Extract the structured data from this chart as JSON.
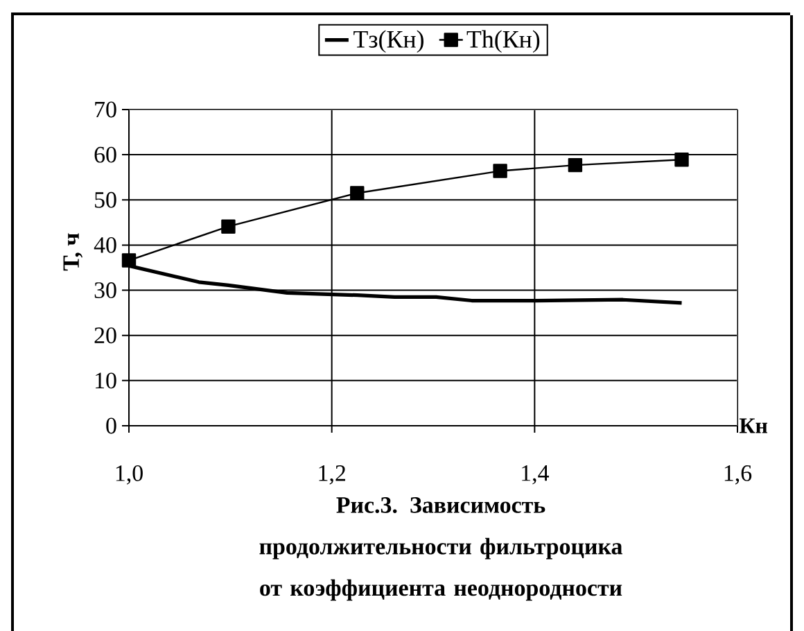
{
  "chart_data": {
    "type": "line",
    "title": "Рис.3. Зависимость продолжительности фильтроцика от коэффициента неоднородности",
    "xlabel": "Кн",
    "ylabel": "Т, ч",
    "series": [
      {
        "name": "Тз(Кн)",
        "color": "#000000",
        "marker": "none",
        "x": [
          1.0,
          1.069,
          1.098,
          1.156,
          1.225,
          1.262,
          1.303,
          1.338,
          1.402,
          1.487,
          1.545
        ],
        "values": [
          35.4,
          31.8,
          31.1,
          29.4,
          28.9,
          28.5,
          28.5,
          27.7,
          27.7,
          27.9,
          27.2
        ]
      },
      {
        "name": "Th(Кн)",
        "color": "#000000",
        "marker": "square",
        "x": [
          1.0,
          1.098,
          1.225,
          1.366,
          1.44,
          1.545
        ],
        "values": [
          36.6,
          44.1,
          51.5,
          56.4,
          57.7,
          58.9
        ]
      }
    ],
    "xlim": [
      1.0,
      1.6
    ],
    "xticks": [
      {
        "value": 1.0,
        "label": "1,0"
      },
      {
        "value": 1.2,
        "label": "1,2"
      },
      {
        "value": 1.4,
        "label": "1,4"
      },
      {
        "value": 1.6,
        "label": "1,6"
      }
    ],
    "ylim": [
      0,
      70
    ],
    "yticks": [
      0,
      10,
      20,
      30,
      40,
      50,
      60,
      70
    ],
    "grid": true,
    "legend": "top"
  }
}
